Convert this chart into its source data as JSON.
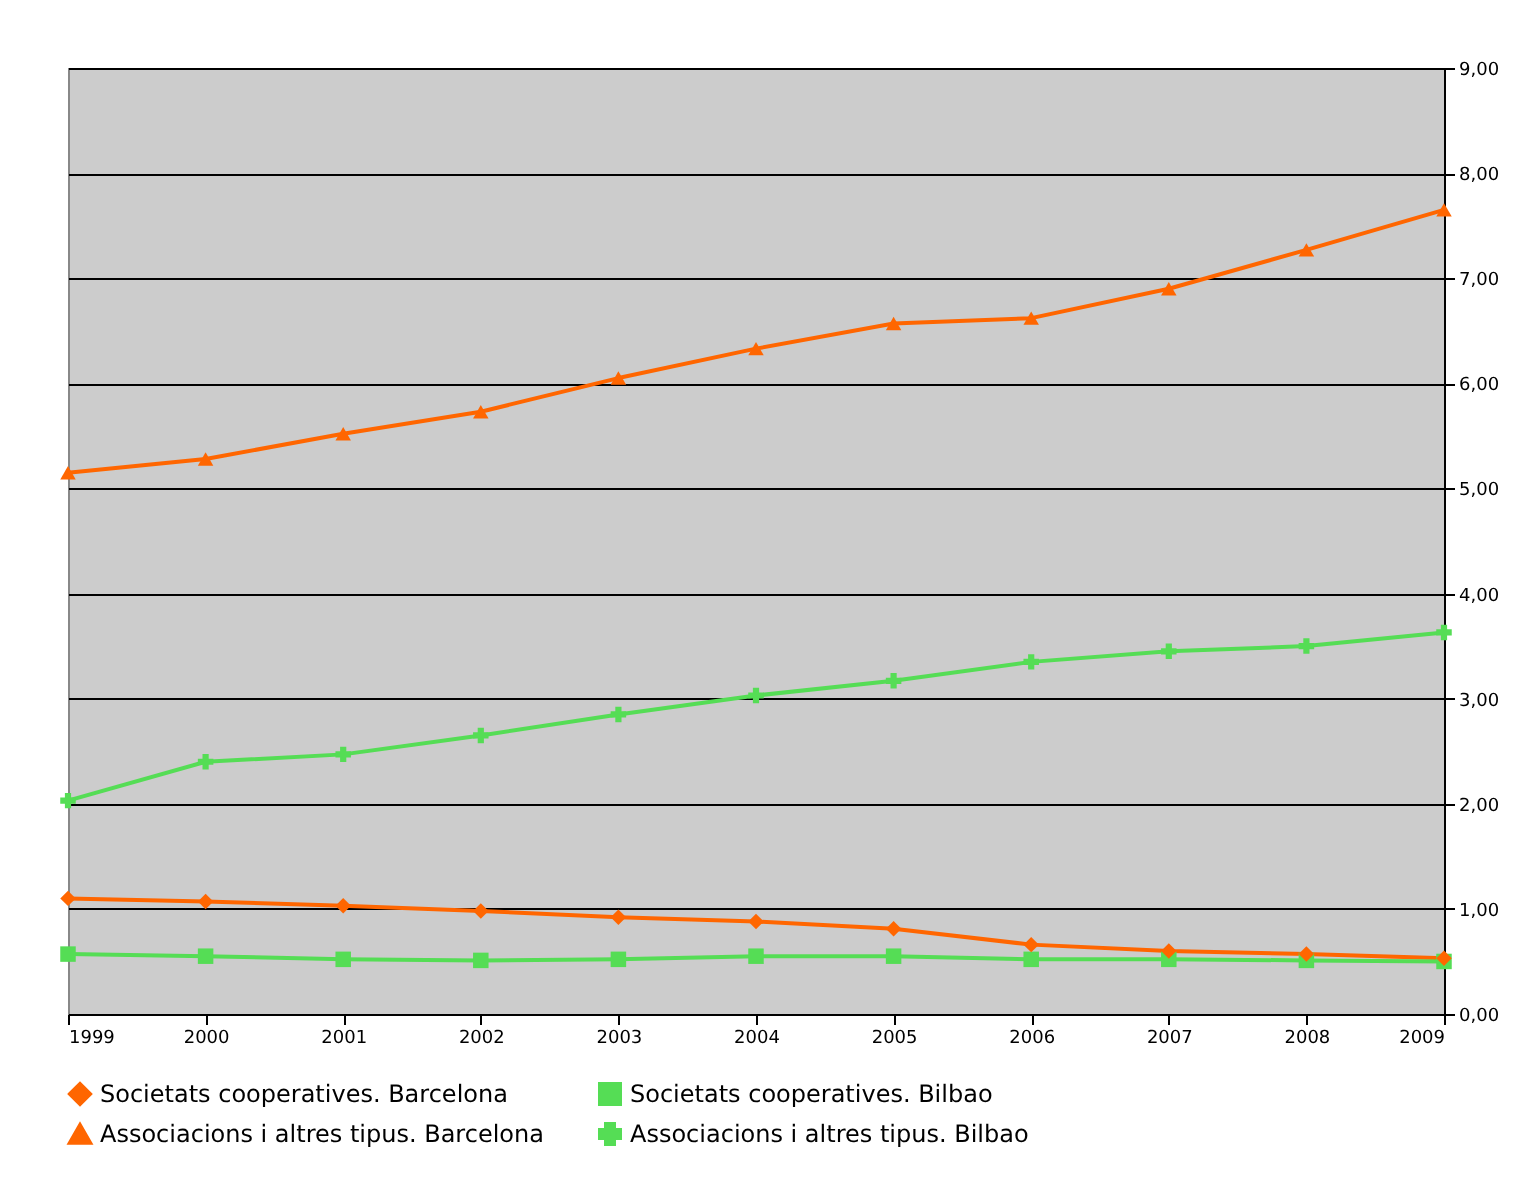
{
  "chart_data": {
    "type": "line",
    "x": [
      1999,
      2000,
      2001,
      2002,
      2003,
      2004,
      2005,
      2006,
      2007,
      2008,
      2009
    ],
    "series": [
      {
        "name": "Societats cooperatives. Barcelona",
        "color": "#ff6600",
        "marker": "diamond",
        "values": [
          1.1,
          1.07,
          1.03,
          0.98,
          0.92,
          0.88,
          0.81,
          0.66,
          0.6,
          0.57,
          0.53
        ]
      },
      {
        "name": "Societats cooperatives. Bilbao",
        "color": "#55dd55",
        "marker": "square",
        "values": [
          0.57,
          0.55,
          0.52,
          0.51,
          0.52,
          0.55,
          0.55,
          0.52,
          0.52,
          0.51,
          0.5
        ]
      },
      {
        "name": "Associacions i altres tipus.  Barcelona",
        "color": "#ff6600",
        "marker": "triangle",
        "values": [
          5.15,
          5.28,
          5.52,
          5.73,
          6.05,
          6.33,
          6.57,
          6.62,
          6.9,
          7.27,
          7.65
        ]
      },
      {
        "name": "Associacions i altres tipus.  Bilbao",
        "color": "#55dd55",
        "marker": "cross",
        "values": [
          2.03,
          2.4,
          2.47,
          2.65,
          2.85,
          3.03,
          3.17,
          3.35,
          3.45,
          3.5,
          3.63
        ]
      }
    ],
    "xlim": [
      1999,
      2009
    ],
    "xticks": [
      1999,
      2000,
      2001,
      2002,
      2003,
      2004,
      2005,
      2006,
      2007,
      2008,
      2009
    ],
    "ylim": [
      0,
      9
    ],
    "yticks": [
      {
        "value": 0,
        "label": "0,00"
      },
      {
        "value": 1,
        "label": "1,00"
      },
      {
        "value": 2,
        "label": "2,00"
      },
      {
        "value": 3,
        "label": "3,00"
      },
      {
        "value": 4,
        "label": "4,00"
      },
      {
        "value": 5,
        "label": "5,00"
      },
      {
        "value": 6,
        "label": "6,00"
      },
      {
        "value": 7,
        "label": "7,00"
      },
      {
        "value": 8,
        "label": "8,00"
      },
      {
        "value": 9,
        "label": "9,00"
      }
    ],
    "grid": "y",
    "legend": "bottom",
    "line_style": "solid"
  }
}
